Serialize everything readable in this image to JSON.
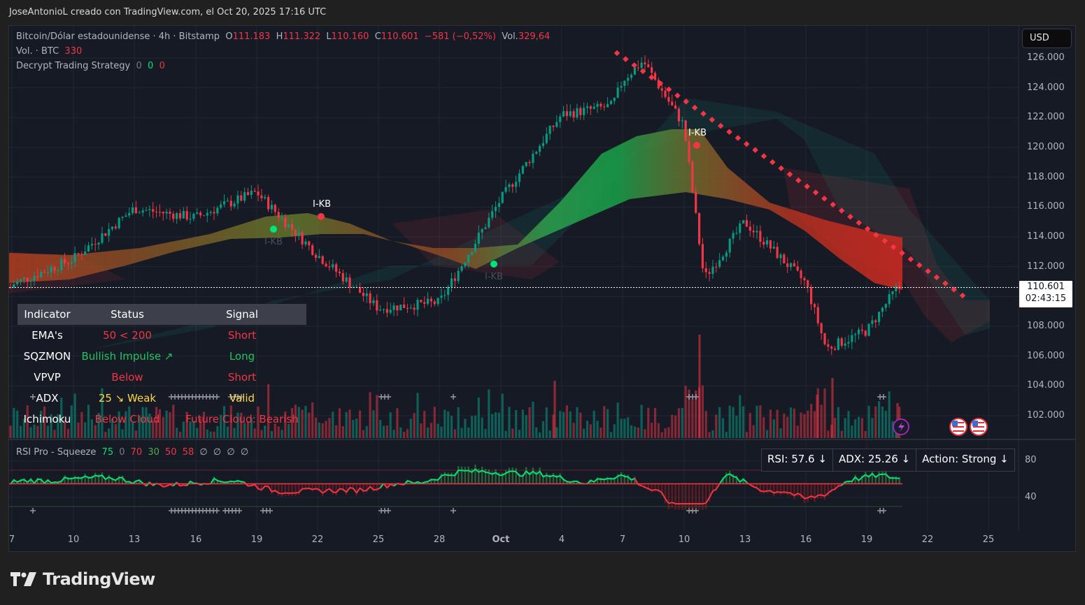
{
  "credit": "JoseAntonioL creado con TradingView.com, el Oct 20, 2025 17:16 UTC",
  "legend": {
    "symbol": "Bitcoin/Dólar estadounidense · 4h · Bitstamp",
    "o_label": "O",
    "o": "111.183",
    "h_label": "H",
    "h": "111.322",
    "l_label": "L",
    "l": "110.160",
    "c_label": "C",
    "c": "110.601",
    "change": "−581 (−0,52%)",
    "vol_label": "Vol.",
    "vol": "329,64",
    "volume_title": "Vol. · BTC",
    "volume_value": "330",
    "strategy_title": "Decrypt Trading Strategy",
    "strategy_v1": "0",
    "strategy_v2": "0",
    "strategy_v3": "0"
  },
  "currency_button": "USD",
  "price_axis": [
    "126.000",
    "124.000",
    "122.000",
    "120.000",
    "118.000",
    "116.000",
    "114.000",
    "112.000",
    "108.000",
    "106.000",
    "104.000",
    "102.000"
  ],
  "price_tag": {
    "price": "110.601",
    "countdown": "02:43:15"
  },
  "time_axis": [
    "7",
    "10",
    "13",
    "16",
    "19",
    "22",
    "25",
    "28",
    "Oct",
    "4",
    "7",
    "10",
    "13",
    "16",
    "19",
    "22",
    "25"
  ],
  "labels": {
    "ikb": "I-KB"
  },
  "table": {
    "headers": [
      "Indicator",
      "Status",
      "Signal"
    ],
    "rows": [
      {
        "indicator": "EMA's",
        "status": "50 < 200",
        "signal": "Short",
        "status_color": "red",
        "signal_color": "red"
      },
      {
        "indicator": "SQZMON",
        "status": "Bullish Impulse ↗",
        "signal": "Long",
        "status_color": "lime",
        "signal_color": "lime"
      },
      {
        "indicator": "VPVP",
        "status": "Below",
        "signal": "Short",
        "status_color": "red",
        "signal_color": "red"
      },
      {
        "indicator": "ADX",
        "status": "25 ↘ Weak",
        "signal": "Valid",
        "status_color": "yel",
        "signal_color": "yel"
      },
      {
        "indicator": "Ichimoku",
        "status": "Below Cloud",
        "signal": "Future Cloud: Bearish",
        "status_color": "red",
        "signal_color": "red"
      }
    ]
  },
  "rsi_panel": {
    "title": "RSI Pro - Squeeze",
    "values": [
      "75",
      "0",
      "70",
      "30",
      "50",
      "58",
      "∅",
      "∅",
      "∅",
      "∅"
    ],
    "axis": [
      "80",
      "40"
    ],
    "status": {
      "rsi": "RSI: 57.6 ↓",
      "adx": "ADX: 25.26 ↓",
      "action": "Action: Strong ↓"
    }
  },
  "brand": "TradingView",
  "colors": {
    "up": "#089981",
    "down": "#f23645",
    "bg": "#161a25",
    "grid": "#262a35",
    "signal_green": "#00e676",
    "trend": "#f23645"
  },
  "chart_data": {
    "type": "candlestick",
    "title": "Bitcoin/Dólar estadounidense · 4h · Bitstamp",
    "ylabel": "USD",
    "ylim": [
      101000,
      127000
    ],
    "x_ticks": [
      "Sep 7",
      "Sep 10",
      "Sep 13",
      "Sep 16",
      "Sep 19",
      "Sep 22",
      "Sep 25",
      "Sep 28",
      "Oct 1",
      "Oct 4",
      "Oct 7",
      "Oct 10",
      "Oct 13",
      "Oct 16",
      "Oct 19",
      "Oct 22",
      "Oct 25"
    ],
    "approx_close_by_tick": [
      {
        "date": "Sep 7",
        "close": 110800
      },
      {
        "date": "Sep 10",
        "close": 112500
      },
      {
        "date": "Sep 13",
        "close": 115900
      },
      {
        "date": "Sep 16",
        "close": 115300
      },
      {
        "date": "Sep 19",
        "close": 117000
      },
      {
        "date": "Sep 22",
        "close": 112800
      },
      {
        "date": "Sep 25",
        "close": 109200
      },
      {
        "date": "Sep 28",
        "close": 109600
      },
      {
        "date": "Oct 1",
        "close": 116500
      },
      {
        "date": "Oct 4",
        "close": 122200
      },
      {
        "date": "Oct 7",
        "close": 124500
      },
      {
        "date": "Oct 10",
        "close": 121500
      },
      {
        "date": "Oct 11",
        "close": 111200
      },
      {
        "date": "Oct 13",
        "close": 115000
      },
      {
        "date": "Oct 16",
        "close": 110900
      },
      {
        "date": "Oct 17",
        "close": 106500
      },
      {
        "date": "Oct 19",
        "close": 107700
      },
      {
        "date": "Oct 20",
        "close": 110601
      }
    ],
    "last": {
      "open": 111183,
      "high": 111322,
      "low": 110160,
      "close": 110601,
      "change": -581,
      "change_pct": -0.52
    },
    "trendline": {
      "from": {
        "date": "Oct 6",
        "price": 126300
      },
      "to": {
        "date": "Oct 23",
        "price": 109500
      },
      "style": "dotted",
      "color": "#f23645"
    },
    "signals": [
      {
        "type": "buy",
        "date": "Sep 20",
        "price": 114700,
        "label": "I-KB"
      },
      {
        "type": "sell",
        "date": "Sep 22",
        "price": 115300,
        "label": "I-KB"
      },
      {
        "type": "buy",
        "date": "Sep 30",
        "price": 112100,
        "label": "I-KB"
      },
      {
        "type": "sell",
        "date": "Oct 11",
        "price": 120100,
        "label": "I-KB"
      }
    ],
    "rsi_series_note": "RSI Pro - Squeeze oscillator, axis 40–80; last RSI 57.6",
    "rsi_ylim": [
      30,
      90
    ]
  }
}
